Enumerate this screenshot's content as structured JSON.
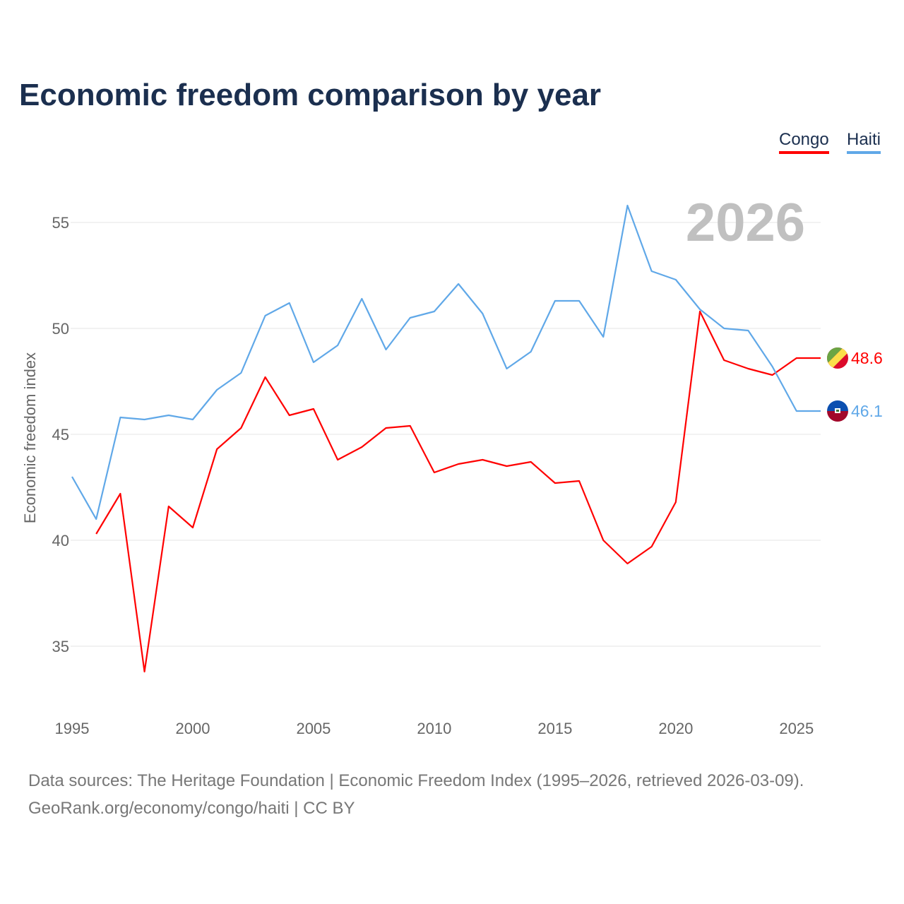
{
  "title": "Economic freedom comparison by year",
  "footer": {
    "line1": "Data sources: The Heritage Foundation | Economic Freedom Index (1995–2026, retrieved 2026-03-09).",
    "line2": "GeoRank.org/economy/congo/haiti | CC BY"
  },
  "chart_data": {
    "type": "line",
    "title": "Economic freedom comparison by year",
    "ylabel": "Economic freedom index",
    "xlabel": "",
    "year_watermark": "2026",
    "xlim": [
      1995,
      2026
    ],
    "ylim": [
      32.5,
      57
    ],
    "xticks": [
      "1995",
      "2000",
      "2005",
      "2010",
      "2015",
      "2020",
      "2025"
    ],
    "yticks": [
      "35",
      "40",
      "45",
      "50",
      "55"
    ],
    "grid": true,
    "legend": "top-right",
    "series": [
      {
        "name": "Congo",
        "color": "#ff0000",
        "end_label": "48.6",
        "x_start": 1996,
        "values": [
          40.3,
          42.2,
          33.8,
          41.6,
          40.6,
          44.3,
          45.3,
          47.7,
          45.9,
          46.2,
          43.8,
          44.4,
          45.3,
          45.4,
          43.2,
          43.6,
          43.8,
          43.5,
          43.7,
          42.7,
          42.8,
          40.0,
          38.9,
          39.7,
          41.8,
          50.8,
          48.5,
          48.1,
          47.8,
          48.6,
          48.6
        ]
      },
      {
        "name": "Haiti",
        "color": "#60a8e8",
        "end_label": "46.1",
        "x_start": 1995,
        "values": [
          43.0,
          41.0,
          45.8,
          45.7,
          45.9,
          45.7,
          47.1,
          47.9,
          50.6,
          51.2,
          48.4,
          49.2,
          51.4,
          49.0,
          50.5,
          50.8,
          52.1,
          50.7,
          48.1,
          48.9,
          51.3,
          51.3,
          49.6,
          55.8,
          52.7,
          52.3,
          50.9,
          50.0,
          49.9,
          48.2,
          46.1,
          46.1
        ]
      }
    ]
  }
}
